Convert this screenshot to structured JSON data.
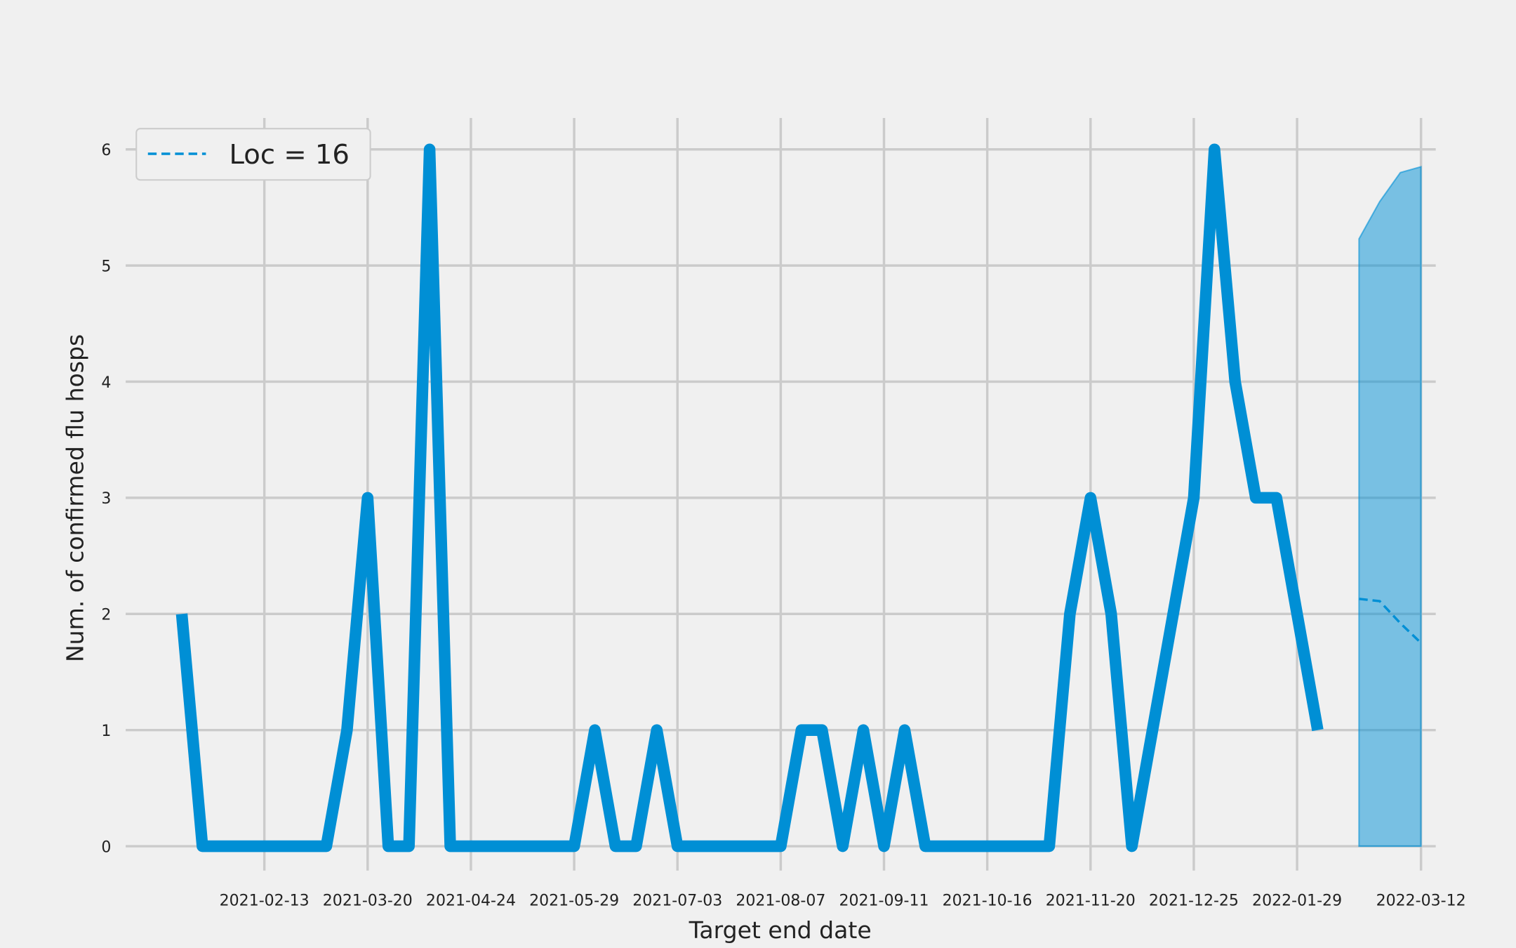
{
  "chart_data": {
    "type": "line",
    "xlabel": "Target end date",
    "ylabel": "Num. of confirmed flu hosps",
    "xlim": [
      "2020-12-28",
      "2022-03-17"
    ],
    "xticks": [
      "2021-02-13",
      "2021-03-20",
      "2021-04-24",
      "2021-05-29",
      "2021-07-03",
      "2021-08-07",
      "2021-09-11",
      "2021-10-16",
      "2021-11-20",
      "2021-12-25",
      "2022-01-29",
      "2022-03-12"
    ],
    "ylim": [
      -0.21,
      6.27
    ],
    "yticks": [
      0,
      1,
      2,
      3,
      4,
      5,
      6
    ],
    "grid": true,
    "legend": "upper left",
    "series": [
      {
        "color": "#008fd5",
        "style": "solid",
        "x": [
          "2021-01-16",
          "2021-01-23",
          "2021-01-30",
          "2021-02-06",
          "2021-02-13",
          "2021-02-20",
          "2021-02-27",
          "2021-03-06",
          "2021-03-13",
          "2021-03-20",
          "2021-03-27",
          "2021-04-03",
          "2021-04-10",
          "2021-04-17",
          "2021-04-24",
          "2021-05-01",
          "2021-05-08",
          "2021-05-15",
          "2021-05-22",
          "2021-05-29",
          "2021-06-05",
          "2021-06-12",
          "2021-06-19",
          "2021-06-26",
          "2021-07-03",
          "2021-07-10",
          "2021-07-17",
          "2021-07-24",
          "2021-07-31",
          "2021-08-07",
          "2021-08-14",
          "2021-08-21",
          "2021-08-28",
          "2021-09-04",
          "2021-09-11",
          "2021-09-18",
          "2021-09-25",
          "2021-10-02",
          "2021-10-09",
          "2021-10-16",
          "2021-10-23",
          "2021-10-30",
          "2021-11-06",
          "2021-11-13",
          "2021-11-20",
          "2021-11-27",
          "2021-12-04",
          "2021-12-11",
          "2021-12-18",
          "2021-12-25",
          "2022-01-01",
          "2022-01-08",
          "2022-01-15",
          "2022-01-22",
          "2022-01-29",
          "2022-02-05"
        ],
        "values": [
          2,
          0,
          0,
          0,
          0,
          0,
          0,
          0,
          1,
          3,
          0,
          0,
          6,
          0,
          0,
          0,
          0,
          0,
          0,
          0,
          1,
          0,
          0,
          1,
          0,
          0,
          0,
          0,
          0,
          0,
          1,
          1,
          0,
          1,
          0,
          1,
          0,
          0,
          0,
          0,
          0,
          0,
          0,
          2,
          3,
          2,
          0,
          1,
          2,
          3,
          6,
          4,
          3,
          3,
          2,
          1
        ]
      },
      {
        "name": "Loc = 16",
        "color": "#008fd5",
        "style": "dashed",
        "x": [
          "2022-02-19",
          "2022-02-26",
          "2022-03-05",
          "2022-03-12"
        ],
        "values": [
          2.13,
          2.11,
          1.92,
          1.75
        ],
        "lower": [
          0,
          0,
          0,
          0
        ],
        "upper": [
          5.23,
          5.55,
          5.8,
          5.85
        ]
      }
    ]
  }
}
